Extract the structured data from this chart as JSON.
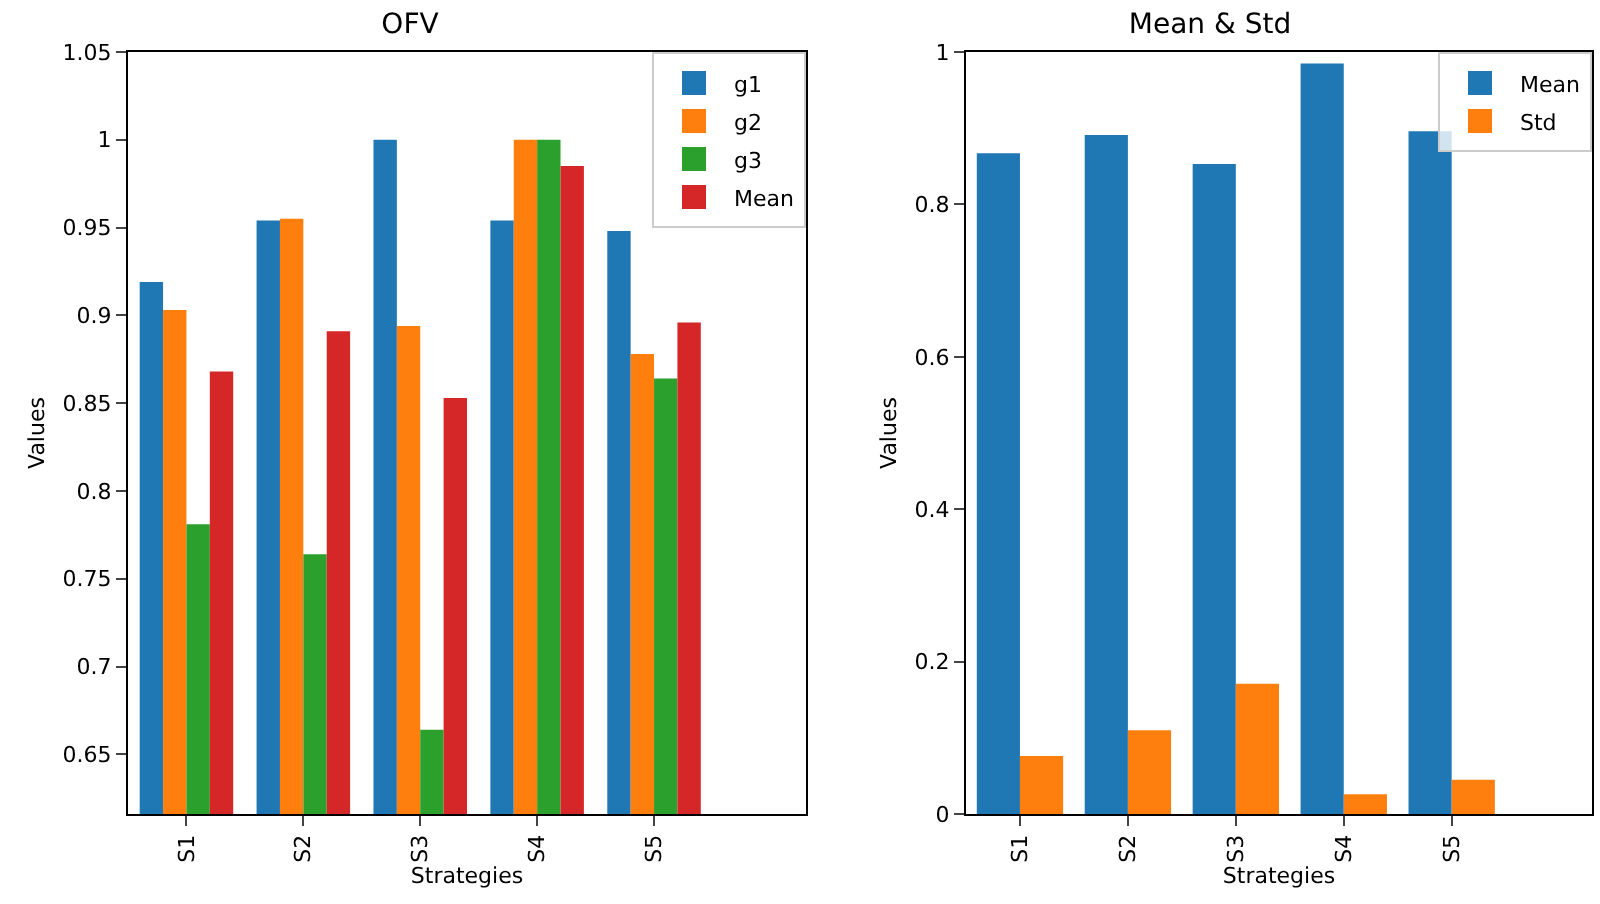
{
  "chart_data": [
    {
      "type": "bar",
      "title": "OFV",
      "xlabel": "Strategies",
      "ylabel": "Values",
      "categories": [
        "S1",
        "S2",
        "S3",
        "S4",
        "S5"
      ],
      "series": [
        {
          "name": "g1",
          "color": "#1f77b4",
          "values": [
            0.919,
            0.954,
            1.0,
            0.954,
            0.948
          ]
        },
        {
          "name": "g2",
          "color": "#ff7f0e",
          "values": [
            0.903,
            0.955,
            0.894,
            1.0,
            0.878
          ]
        },
        {
          "name": "g3",
          "color": "#2ca02c",
          "values": [
            0.781,
            0.764,
            0.664,
            1.0,
            0.864
          ]
        },
        {
          "name": "Mean",
          "color": "#d62728",
          "values": [
            0.868,
            0.891,
            0.853,
            0.985,
            0.896
          ]
        }
      ],
      "ylim": [
        0.616,
        1.05
      ],
      "yticks": [
        0.65,
        0.7,
        0.75,
        0.8,
        0.85,
        0.9,
        0.95,
        1.0,
        1.05
      ],
      "grid": false,
      "legend": "top right"
    },
    {
      "type": "bar",
      "title": "Mean & Std",
      "xlabel": "Strategies",
      "ylabel": "Values",
      "categories": [
        "S1",
        "S2",
        "S3",
        "S4",
        "S5"
      ],
      "series": [
        {
          "name": "Mean",
          "color": "#1f77b4",
          "values": [
            0.867,
            0.891,
            0.853,
            0.985,
            0.896
          ]
        },
        {
          "name": "Std",
          "color": "#ff7f0e",
          "values": [
            0.076,
            0.11,
            0.171,
            0.026,
            0.045
          ]
        }
      ],
      "ylim": [
        0,
        1.0
      ],
      "yticks": [
        0,
        0.2,
        0.4,
        0.6,
        0.8,
        1.0
      ],
      "grid": false,
      "legend": "top right"
    }
  ]
}
